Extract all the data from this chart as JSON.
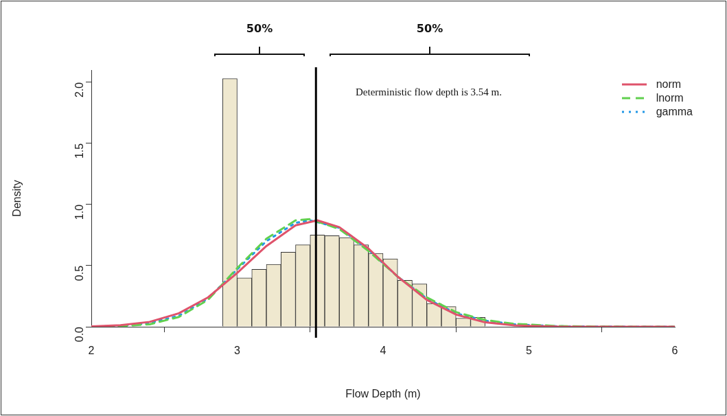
{
  "chart_data": {
    "type": "histogram",
    "xlabel": "Flow Depth (m)",
    "ylabel": "Density",
    "bins": [
      2.9,
      3.0,
      3.1,
      3.2,
      3.3,
      3.4,
      3.5,
      3.6,
      3.7,
      3.8,
      3.9,
      4.0,
      4.1,
      4.2,
      4.3,
      4.4,
      4.5,
      4.6,
      4.7
    ],
    "values": [
      2.03,
      0.4,
      0.47,
      0.51,
      0.61,
      0.67,
      0.75,
      0.745,
      0.73,
      0.67,
      0.6,
      0.555,
      0.38,
      0.35,
      0.19,
      0.165,
      0.07,
      0.077
    ],
    "color": "#efe8cf",
    "series": [
      {
        "name": "norm",
        "type": "line",
        "color": "#df536b",
        "line_style": "solid",
        "x": [
          2.0,
          2.2,
          2.4,
          2.6,
          2.8,
          3.0,
          3.2,
          3.4,
          3.55,
          3.7,
          3.9,
          4.1,
          4.3,
          4.5,
          4.7,
          4.9,
          5.2,
          5.5,
          6.0
        ],
        "values": [
          0.003,
          0.012,
          0.04,
          0.11,
          0.24,
          0.44,
          0.66,
          0.83,
          0.87,
          0.815,
          0.64,
          0.41,
          0.22,
          0.1,
          0.036,
          0.011,
          0.001,
          0,
          0
        ]
      },
      {
        "name": "lnorm",
        "type": "line",
        "color": "#61d04f",
        "line_style": "dashed",
        "x": [
          2.0,
          2.2,
          2.4,
          2.6,
          2.8,
          3.0,
          3.2,
          3.4,
          3.5,
          3.7,
          3.9,
          4.1,
          4.3,
          4.5,
          4.7,
          4.9,
          5.2,
          5.5,
          6.0
        ],
        "values": [
          0.001,
          0.005,
          0.02,
          0.08,
          0.22,
          0.48,
          0.72,
          0.87,
          0.88,
          0.8,
          0.62,
          0.41,
          0.24,
          0.12,
          0.055,
          0.024,
          0.006,
          0.001,
          0
        ]
      },
      {
        "name": "gamma",
        "type": "line",
        "color": "#2297e6",
        "line_style": "dotted",
        "x": [
          2.0,
          2.2,
          2.4,
          2.6,
          2.8,
          3.0,
          3.2,
          3.4,
          3.5,
          3.7,
          3.9,
          4.1,
          4.3,
          4.5,
          4.7,
          4.9,
          5.2,
          5.5,
          6.0
        ],
        "values": [
          0.001,
          0.007,
          0.03,
          0.09,
          0.23,
          0.47,
          0.7,
          0.85,
          0.87,
          0.81,
          0.63,
          0.41,
          0.23,
          0.11,
          0.05,
          0.02,
          0.004,
          0.001,
          0
        ]
      }
    ],
    "ref_lines": [
      {
        "axis": "x",
        "value": 3.54,
        "color": "#000000"
      }
    ],
    "annotations": [
      "50%",
      "50%",
      "Deterministic flow depth is 3.54 m."
    ],
    "xlim": [
      2,
      6
    ],
    "ylim": [
      0,
      2.1
    ],
    "xticks": [
      2,
      3,
      4,
      5,
      6
    ],
    "yticks": [
      {
        "value": 0,
        "label": "0.0"
      },
      {
        "value": 0.5,
        "label": "0.5"
      },
      {
        "value": 1,
        "label": "1.0"
      },
      {
        "value": 1.5,
        "label": "1.5"
      },
      {
        "value": 2,
        "label": "2.0"
      }
    ],
    "grid": false,
    "legend": "top right"
  }
}
